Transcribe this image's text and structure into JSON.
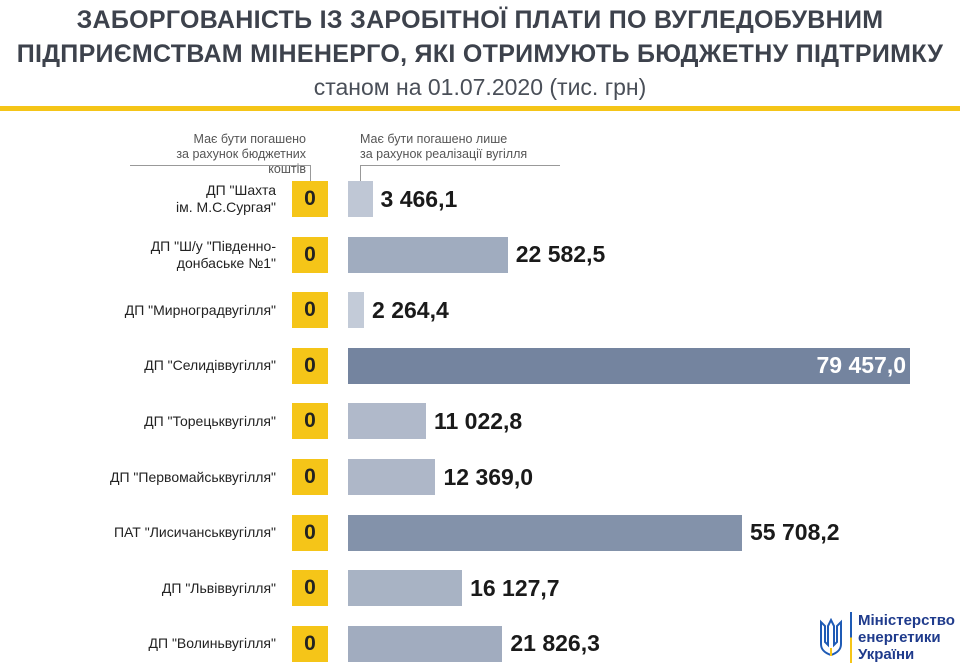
{
  "chart_data": {
    "type": "bar",
    "orientation": "horizontal",
    "title": "ЗАБОРГОВАНІСТЬ ІЗ ЗАРОБІТНОЇ ПЛАТИ ПО ВУГЛЕДОБУВНИМ ПІДПРИЄМСТВАМ МІНЕНЕРГО, ЯКІ ОТРИМУЮТЬ БЮДЖЕТНУ ПІДТРИМКУ",
    "title_line1": "ЗАБОРГОВАНІСТЬ ІЗ ЗАРОБІТНОЇ ПЛАТИ ПО ВУГЛЕДОБУВНИМ",
    "title_line2": "ПІДПРИЄМСТВАМ МІНЕНЕРГО, ЯКІ ОТРИМУЮТЬ БЮДЖЕТНУ ПІДТРИМКУ",
    "subtitle": "станом на 01.07.2020 (тис. грн)",
    "categories": [
      "ДП \"Шахта\nім. М.С.Сургая\"",
      "ДП \"Ш/у \"Південно-\nдонбаське №1\"",
      "ДП \"Мирноградвугілля\"",
      "ДП \"Селидіввугілля\"",
      "ДП \"Торецьквугілля\"",
      "ДП \"Первомайськвугілля\"",
      "ПАТ \"Лисичанськвугілля\"",
      "ДП \"Львіввугілля\"",
      "ДП \"Волиньвугілля\""
    ],
    "series": [
      {
        "name": "Має бути погашено за рахунок бюджетних коштів",
        "values": [
          0,
          0,
          0,
          0,
          0,
          0,
          0,
          0,
          0
        ],
        "labels": [
          "0",
          "0",
          "0",
          "0",
          "0",
          "0",
          "0",
          "0",
          "0"
        ],
        "color": "#f5c518"
      },
      {
        "name": "Має бути погашено лише за рахунок реалізації вугілля",
        "values": [
          3466.1,
          22582.5,
          2264.4,
          79457.0,
          11022.8,
          12369.0,
          55708.2,
          16127.7,
          21826.3
        ],
        "labels": [
          "3 466,1",
          "22 582,5",
          "2 264,4",
          "79 457,0",
          "11 022,8",
          "12 369,0",
          "55 708,2",
          "16 127,7",
          "21 826,3"
        ],
        "color_light": "#d3d9e3",
        "color_dark": "#74849f"
      }
    ],
    "xlim": [
      0,
      79457.0
    ],
    "grid": false
  },
  "legend": {
    "left": "Має бути погашено\nза рахунок бюджетних коштів",
    "right": "Має бути погашено лише\nза рахунок реалізації вугілля"
  },
  "logo": {
    "text": "Міністерство\nенергетики\nУкраїни"
  },
  "colors": {
    "accent": "#f5c518",
    "title": "#3d424c"
  }
}
